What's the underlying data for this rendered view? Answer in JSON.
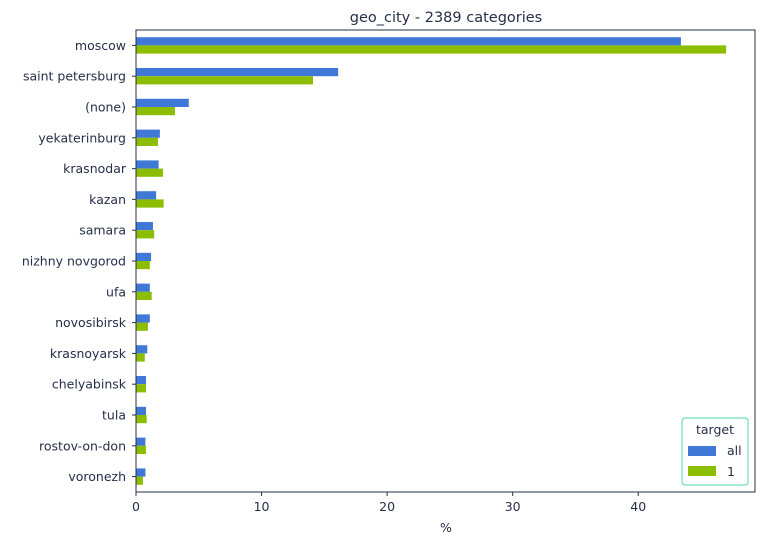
{
  "chart_data": {
    "type": "bar",
    "orientation": "horizontal",
    "title": "geo_city - 2389 categories",
    "xlabel": "%",
    "ylabel": "",
    "xlim": [
      0,
      49.3
    ],
    "xticks": [
      0,
      10,
      20,
      30,
      40
    ],
    "categories": [
      "moscow",
      "saint petersburg",
      "(none)",
      "yekaterinburg",
      "krasnodar",
      "kazan",
      "samara",
      "nizhny novgorod",
      "ufa",
      "novosibirsk",
      "krasnoyarsk",
      "chelyabinsk",
      "tula",
      "rostov-on-don",
      "voronezh"
    ],
    "series": [
      {
        "name": "all",
        "color": "#3f78d6",
        "values": [
          43.4,
          16.1,
          4.2,
          1.9,
          1.8,
          1.6,
          1.35,
          1.2,
          1.1,
          1.1,
          0.9,
          0.8,
          0.8,
          0.75,
          0.75
        ]
      },
      {
        "name": "1",
        "color": "#8cbd00",
        "values": [
          47.0,
          14.1,
          3.1,
          1.75,
          2.15,
          2.2,
          1.45,
          1.1,
          1.25,
          0.95,
          0.7,
          0.8,
          0.85,
          0.8,
          0.55
        ]
      }
    ],
    "legend": {
      "title": "target",
      "position": "bottom-right"
    },
    "grid": false
  }
}
